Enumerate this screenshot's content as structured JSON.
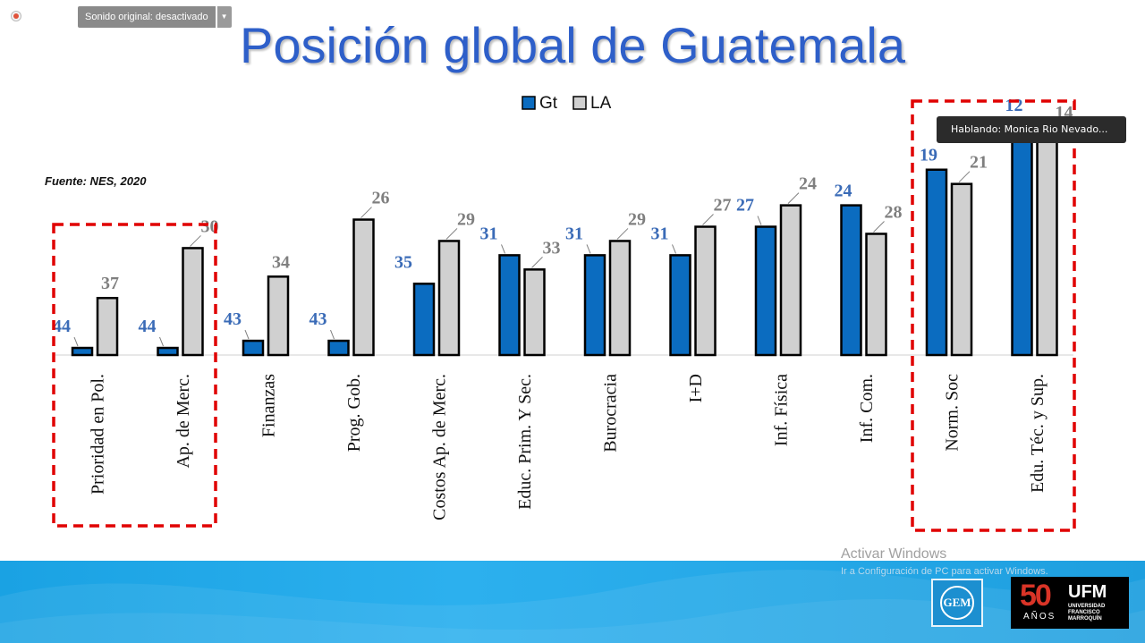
{
  "meeting": {
    "audio_label": "Sonido original: desactivado",
    "speaker_label": "Hablando: Monica Rio Nevado..."
  },
  "slide": {
    "title": "Posición global de Guatemala",
    "source": "Fuente: NES, 2020",
    "highlight_color": "#e00000"
  },
  "chart_data": {
    "type": "bar",
    "note": "Ranking position; lower rank plotted as taller bar",
    "categories": [
      "Prioridad en Pol.",
      "Ap. de Merc.",
      "Finanzas",
      "Prog. Gob.",
      "Costos Ap. de Merc.",
      "Educ. Prim. Y Sec.",
      "Burocracia",
      "I+D",
      "Inf. Física",
      "Inf. Com.",
      "Norm. Soc",
      "Edu. Téc. y Sup."
    ],
    "series": [
      {
        "name": "Gt",
        "values": [
          44,
          44,
          43,
          43,
          35,
          31,
          31,
          31,
          27,
          24,
          19,
          12
        ],
        "color": "#0b6cc0"
      },
      {
        "name": "LA",
        "values": [
          37,
          30,
          34,
          26,
          29,
          33,
          29,
          27,
          24,
          28,
          21,
          14
        ],
        "color": "#d0d0d0"
      }
    ],
    "ylim": [
      45,
      10
    ],
    "legend_position": "top-center",
    "highlighted_groups": [
      [
        "Prioridad en Pol.",
        "Ap. de Merc."
      ],
      [
        "Norm. Soc",
        "Edu. Téc. y Sup."
      ]
    ],
    "label_colors": {
      "Gt": "#3a6bb7",
      "LA": "#7f7f7f"
    }
  },
  "footer": {
    "watermark_title": "Activar Windows",
    "watermark_sub": "Ir a Configuración de PC para activar Windows.",
    "gem_label": "GEM",
    "ufm_number": "50",
    "ufm_years": "AÑOS",
    "ufm_brand": "UFM",
    "ufm_sub": "Universidad Francisco Marroquín"
  }
}
